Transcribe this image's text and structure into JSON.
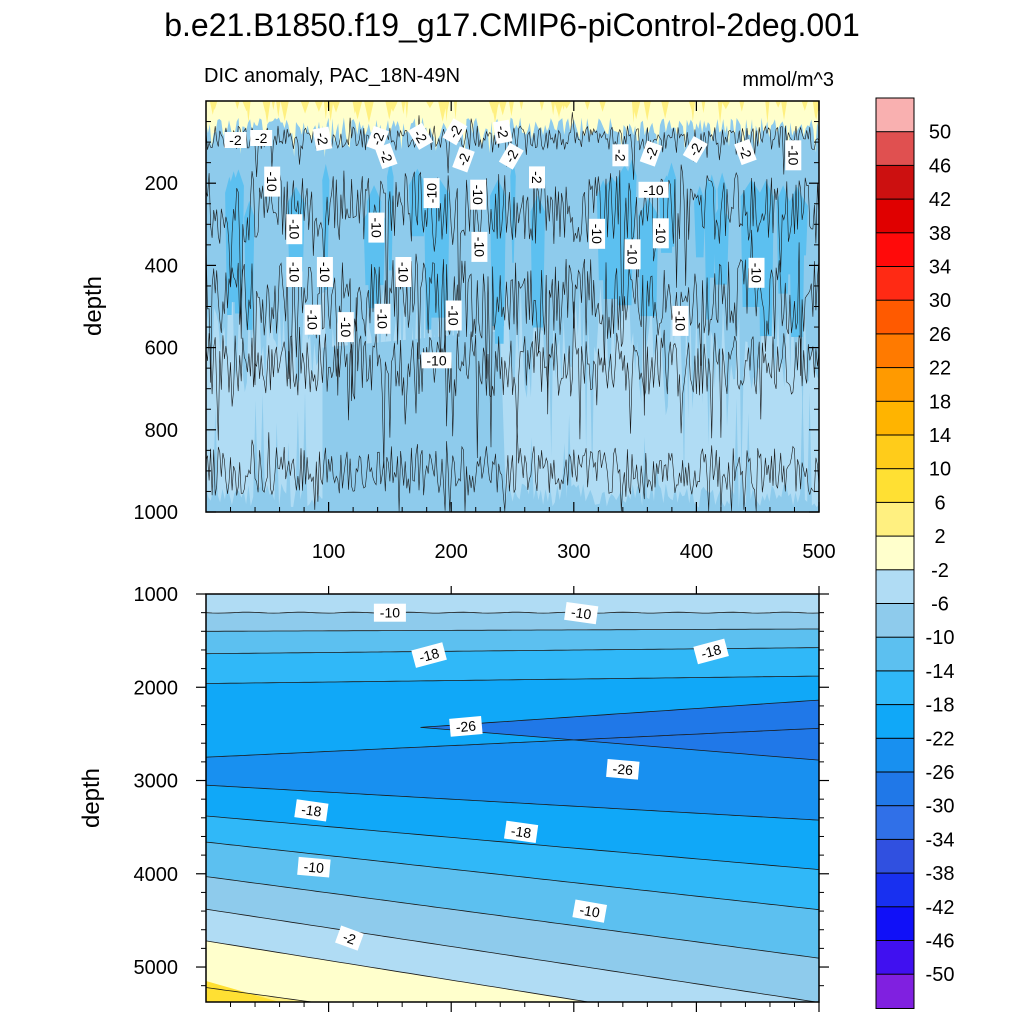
{
  "chart_data": {
    "type": "contour",
    "title": "b.e21.B1850.f19_g17.CMIP6-piControl-2deg.001",
    "subtitle": "DIC anomaly, PAC_18N-49N",
    "units": "mmol/m^3",
    "colorbar": {
      "levels": [
        -50,
        -46,
        -42,
        -38,
        -34,
        -30,
        -26,
        -22,
        -18,
        -14,
        -10,
        -6,
        -2,
        2,
        6,
        10,
        14,
        18,
        22,
        26,
        30,
        34,
        38,
        42,
        46,
        50
      ],
      "tick_labels": [
        "50",
        "46",
        "42",
        "38",
        "34",
        "30",
        "26",
        "22",
        "18",
        "14",
        "10",
        "6",
        "2",
        "-2",
        "-6",
        "-10",
        "-14",
        "-18",
        "-22",
        "-26",
        "-30",
        "-34",
        "-38",
        "-42",
        "-46",
        "-50"
      ],
      "colors_top_to_bottom": [
        "#f9b0b0",
        "#e05050",
        "#cc1010",
        "#e00000",
        "#ff0a0a",
        "#ff2a14",
        "#ff5a00",
        "#ff7a00",
        "#ff9a00",
        "#ffb400",
        "#ffcc1a",
        "#ffe033",
        "#fff080",
        "#ffffcc",
        "#b0dcf4",
        "#8ecbec",
        "#5cc0f0",
        "#30b8f8",
        "#10a8f8",
        "#1890f0",
        "#2078e8",
        "#3070e8",
        "#3050e0",
        "#1830f0",
        "#1010f8",
        "#4010f0",
        "#8020e0"
      ]
    },
    "panels": [
      {
        "name": "upper",
        "xlabel": "",
        "ylabel": "depth",
        "xlim": [
          0,
          500
        ],
        "ylim": [
          0,
          1000
        ],
        "y_inverted": true,
        "x_ticks": [
          "100",
          "200",
          "300",
          "400",
          "500"
        ],
        "y_ticks": [
          "200",
          "400",
          "600",
          "800",
          "1000"
        ],
        "contour_labels": [
          "-2",
          "-2",
          "-2",
          "-2",
          "-2",
          "-2",
          "-2",
          "-2",
          "-2",
          "-2",
          "-2",
          "-2",
          "-2",
          "-2",
          "-2",
          "-10",
          "-10",
          "-10",
          "-10",
          "-10",
          "-10",
          "-10",
          "-10",
          "-10",
          "-10",
          "-10",
          "-10",
          "-10",
          "-10",
          "-10",
          "-10",
          "-10",
          "-10",
          "-10",
          "-10",
          "-10"
        ]
      },
      {
        "name": "lower",
        "xlabel": "",
        "ylabel": "depth",
        "xlim": [
          0,
          500
        ],
        "ylim": [
          1000,
          5375
        ],
        "y_inverted": true,
        "y_ticks": [
          "1000",
          "2000",
          "3000",
          "4000",
          "5000"
        ],
        "contour_labels": [
          "-10",
          "-10",
          "-18",
          "-18",
          "-26",
          "-26",
          "-18",
          "-18",
          "-10",
          "-10",
          "-2"
        ]
      }
    ]
  }
}
